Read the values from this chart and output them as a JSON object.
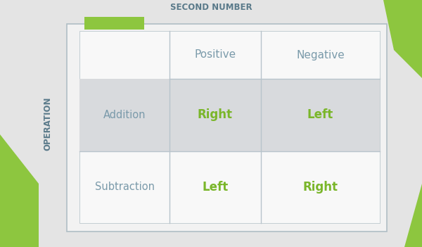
{
  "title": "SECOND NUMBER",
  "ylabel": "OPERATION",
  "col_headers": [
    "Positive",
    "Negative"
  ],
  "row_headers": [
    "Addition",
    "Subtraction"
  ],
  "cell_values": [
    [
      "Right",
      "Left"
    ],
    [
      "Left",
      "Right"
    ]
  ],
  "bg_color": "#e4e4e4",
  "shaded_row_bg": "#d8dadd",
  "title_color": "#5a7a8a",
  "header_color": "#7a9aaa",
  "row_label_color": "#7a9aaa",
  "cell_value_color": "#7ab62a",
  "ylabel_color": "#5a7a8a",
  "green_tab_color": "#8dc63f",
  "border_color": "#b0bec5",
  "line_color": "#b8c4cc",
  "table_face": "#f2f2f2",
  "inner_face": "#f8f8f8"
}
